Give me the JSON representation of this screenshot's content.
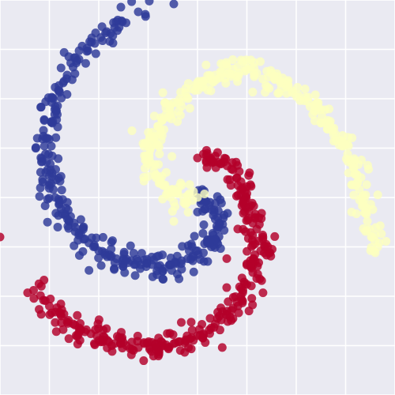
{
  "chart_data": {
    "type": "scatter",
    "title": "",
    "xlabel": "",
    "ylabel": "",
    "xlim": [
      -1,
      1
    ],
    "ylim": [
      -1,
      1
    ],
    "grid": true,
    "legend": "none",
    "style": {
      "background": "#eaeaf2",
      "gridline": "#ffffff",
      "point_opacity": 0.82
    },
    "series": [
      {
        "color": "#b3002a",
        "points": [
          [
            0,
            0.2
          ],
          [
            0.06,
            0.19
          ],
          [
            0.12,
            0.17
          ],
          [
            0.18,
            0.14
          ],
          [
            0.22,
            0.08
          ],
          [
            0.25,
            0.02
          ],
          [
            0.27,
            -0.04
          ],
          [
            0.29,
            -0.1
          ],
          [
            0.3,
            -0.16
          ],
          [
            0.31,
            -0.22
          ],
          [
            0.32,
            -0.27
          ],
          [
            0.31,
            -0.33
          ],
          [
            0.28,
            -0.38
          ],
          [
            0.25,
            -0.44
          ],
          [
            0.22,
            -0.5
          ],
          [
            0.18,
            -0.56
          ],
          [
            0.12,
            -0.62
          ],
          [
            0.06,
            -0.67
          ],
          [
            0,
            -0.7
          ],
          [
            -0.06,
            -0.72
          ],
          [
            -0.12,
            -0.74
          ],
          [
            -0.18,
            -0.75
          ],
          [
            -0.24,
            -0.76
          ],
          [
            -0.3,
            -0.76
          ],
          [
            -0.36,
            -0.75
          ],
          [
            -0.42,
            -0.74
          ],
          [
            -0.48,
            -0.72
          ],
          [
            -0.54,
            -0.69
          ],
          [
            -0.6,
            -0.66
          ],
          [
            -0.66,
            -0.63
          ],
          [
            -0.72,
            -0.58
          ],
          [
            -0.78,
            -0.52
          ],
          [
            -0.83,
            -0.47
          ],
          [
            0.03,
            0.22
          ],
          [
            0.09,
            0.21
          ],
          [
            0.15,
            0.16
          ],
          [
            0.2,
            0.1
          ],
          [
            0.23,
            0.05
          ],
          [
            0.24,
            -0.01
          ],
          [
            0.26,
            -0.07
          ],
          [
            0.28,
            -0.13
          ],
          [
            0.33,
            -0.19
          ],
          [
            0.34,
            -0.25
          ],
          [
            0.29,
            -0.29
          ],
          [
            0.27,
            -0.35
          ],
          [
            0.3,
            -0.41
          ],
          [
            0.23,
            -0.47
          ],
          [
            0.2,
            -0.53
          ],
          [
            0.15,
            -0.59
          ],
          [
            0.09,
            -0.64
          ],
          [
            0.03,
            -0.69
          ],
          [
            -0.03,
            -0.71
          ],
          [
            -0.09,
            -0.73
          ],
          [
            -0.15,
            -0.76
          ],
          [
            -0.21,
            -0.77
          ],
          [
            -0.27,
            -0.74
          ],
          [
            -0.33,
            -0.77
          ],
          [
            -0.39,
            -0.74
          ],
          [
            -0.45,
            -0.73
          ],
          [
            -0.51,
            -0.7
          ],
          [
            -0.57,
            -0.68
          ],
          [
            -0.63,
            -0.64
          ],
          [
            -0.69,
            -0.6
          ],
          [
            -0.75,
            -0.55
          ],
          [
            -1.0,
            -0.2
          ]
        ]
      },
      {
        "color": "#2e3a98",
        "points": [
          [
            0,
            0.02
          ],
          [
            0.04,
            -0.02
          ],
          [
            0.07,
            -0.06
          ],
          [
            0.09,
            -0.11
          ],
          [
            0.1,
            -0.16
          ],
          [
            0.09,
            -0.21
          ],
          [
            0.07,
            -0.25
          ],
          [
            0.03,
            -0.28
          ],
          [
            -0.02,
            -0.3
          ],
          [
            -0.08,
            -0.32
          ],
          [
            -0.14,
            -0.34
          ],
          [
            -0.2,
            -0.35
          ],
          [
            -0.26,
            -0.35
          ],
          [
            -0.32,
            -0.34
          ],
          [
            -0.38,
            -0.32
          ],
          [
            -0.44,
            -0.3
          ],
          [
            -0.5,
            -0.27
          ],
          [
            -0.55,
            -0.23
          ],
          [
            -0.6,
            -0.18
          ],
          [
            -0.65,
            -0.12
          ],
          [
            -0.69,
            -0.06
          ],
          [
            -0.72,
            0
          ],
          [
            -0.74,
            0.07
          ],
          [
            -0.76,
            0.14
          ],
          [
            -0.77,
            0.22
          ],
          [
            -0.76,
            0.3
          ],
          [
            -0.74,
            0.38
          ],
          [
            -0.72,
            0.46
          ],
          [
            -0.7,
            0.54
          ],
          [
            -0.66,
            0.62
          ],
          [
            -0.6,
            0.7
          ],
          [
            -0.52,
            0.78
          ],
          [
            -0.46,
            0.84
          ],
          [
            -0.38,
            0.89
          ],
          [
            -0.3,
            0.94
          ],
          [
            0.02,
            0.0
          ],
          [
            0.06,
            -0.04
          ],
          [
            0.08,
            -0.09
          ],
          [
            0.11,
            -0.13
          ],
          [
            0.08,
            -0.19
          ],
          [
            0.05,
            -0.23
          ],
          [
            0.0,
            -0.27
          ],
          [
            -0.05,
            -0.31
          ],
          [
            -0.11,
            -0.33
          ],
          [
            -0.17,
            -0.36
          ],
          [
            -0.23,
            -0.34
          ],
          [
            -0.29,
            -0.36
          ],
          [
            -0.35,
            -0.33
          ],
          [
            -0.41,
            -0.31
          ],
          [
            -0.47,
            -0.28
          ],
          [
            -0.52,
            -0.25
          ],
          [
            -0.57,
            -0.21
          ],
          [
            -0.62,
            -0.15
          ],
          [
            -0.67,
            -0.09
          ],
          [
            -0.7,
            -0.03
          ],
          [
            -0.73,
            0.04
          ],
          [
            -0.75,
            0.11
          ],
          [
            -0.79,
            0.18
          ],
          [
            -0.74,
            0.26
          ],
          [
            -0.78,
            0.34
          ],
          [
            -0.71,
            0.42
          ],
          [
            -0.73,
            0.5
          ],
          [
            -0.68,
            0.58
          ],
          [
            -0.63,
            0.66
          ],
          [
            -0.56,
            0.74
          ],
          [
            -0.49,
            0.81
          ],
          [
            -0.42,
            0.86
          ],
          [
            -0.12,
            0.98
          ]
        ]
      },
      {
        "color": "#fdffbf",
        "points": [
          [
            0,
            0.0
          ],
          [
            -0.05,
            0.01
          ],
          [
            -0.1,
            0.02
          ],
          [
            -0.15,
            0.04
          ],
          [
            -0.19,
            0.08
          ],
          [
            -0.22,
            0.13
          ],
          [
            -0.24,
            0.18
          ],
          [
            -0.24,
            0.24
          ],
          [
            -0.22,
            0.3
          ],
          [
            -0.2,
            0.36
          ],
          [
            -0.16,
            0.42
          ],
          [
            -0.12,
            0.48
          ],
          [
            -0.06,
            0.53
          ],
          [
            0,
            0.57
          ],
          [
            0.06,
            0.6
          ],
          [
            0.12,
            0.63
          ],
          [
            0.18,
            0.65
          ],
          [
            0.24,
            0.64
          ],
          [
            0.3,
            0.63
          ],
          [
            0.36,
            0.61
          ],
          [
            0.42,
            0.58
          ],
          [
            0.48,
            0.54
          ],
          [
            0.54,
            0.49
          ],
          [
            0.6,
            0.44
          ],
          [
            0.66,
            0.38
          ],
          [
            0.7,
            0.32
          ],
          [
            0.74,
            0.26
          ],
          [
            0.77,
            0.19
          ],
          [
            0.8,
            0.12
          ],
          [
            0.82,
            0.04
          ],
          [
            0.84,
            -0.04
          ],
          [
            0.86,
            -0.12
          ],
          [
            0.88,
            -0.2
          ],
          [
            0.9,
            -0.28
          ],
          [
            -0.02,
            0.03
          ],
          [
            -0.07,
            0.0
          ],
          [
            -0.12,
            0.03
          ],
          [
            -0.17,
            0.06
          ],
          [
            -0.21,
            0.1
          ],
          [
            -0.23,
            0.16
          ],
          [
            -0.26,
            0.21
          ],
          [
            -0.21,
            0.27
          ],
          [
            -0.23,
            0.33
          ],
          [
            -0.18,
            0.39
          ],
          [
            -0.14,
            0.45
          ],
          [
            -0.09,
            0.5
          ],
          [
            -0.03,
            0.55
          ],
          [
            0.03,
            0.59
          ],
          [
            0.09,
            0.62
          ],
          [
            0.15,
            0.66
          ],
          [
            0.21,
            0.63
          ],
          [
            0.27,
            0.66
          ],
          [
            0.33,
            0.6
          ],
          [
            0.39,
            0.6
          ],
          [
            0.45,
            0.56
          ],
          [
            0.51,
            0.52
          ],
          [
            0.57,
            0.46
          ],
          [
            0.63,
            0.41
          ],
          [
            0.68,
            0.35
          ],
          [
            0.72,
            0.29
          ],
          [
            0.76,
            0.22
          ],
          [
            0.79,
            0.15
          ],
          [
            0.81,
            0.08
          ],
          [
            0.83,
            0.0
          ],
          [
            0.85,
            -0.08
          ],
          [
            0.87,
            -0.16
          ],
          [
            0.92,
            -0.23
          ]
        ]
      }
    ]
  }
}
